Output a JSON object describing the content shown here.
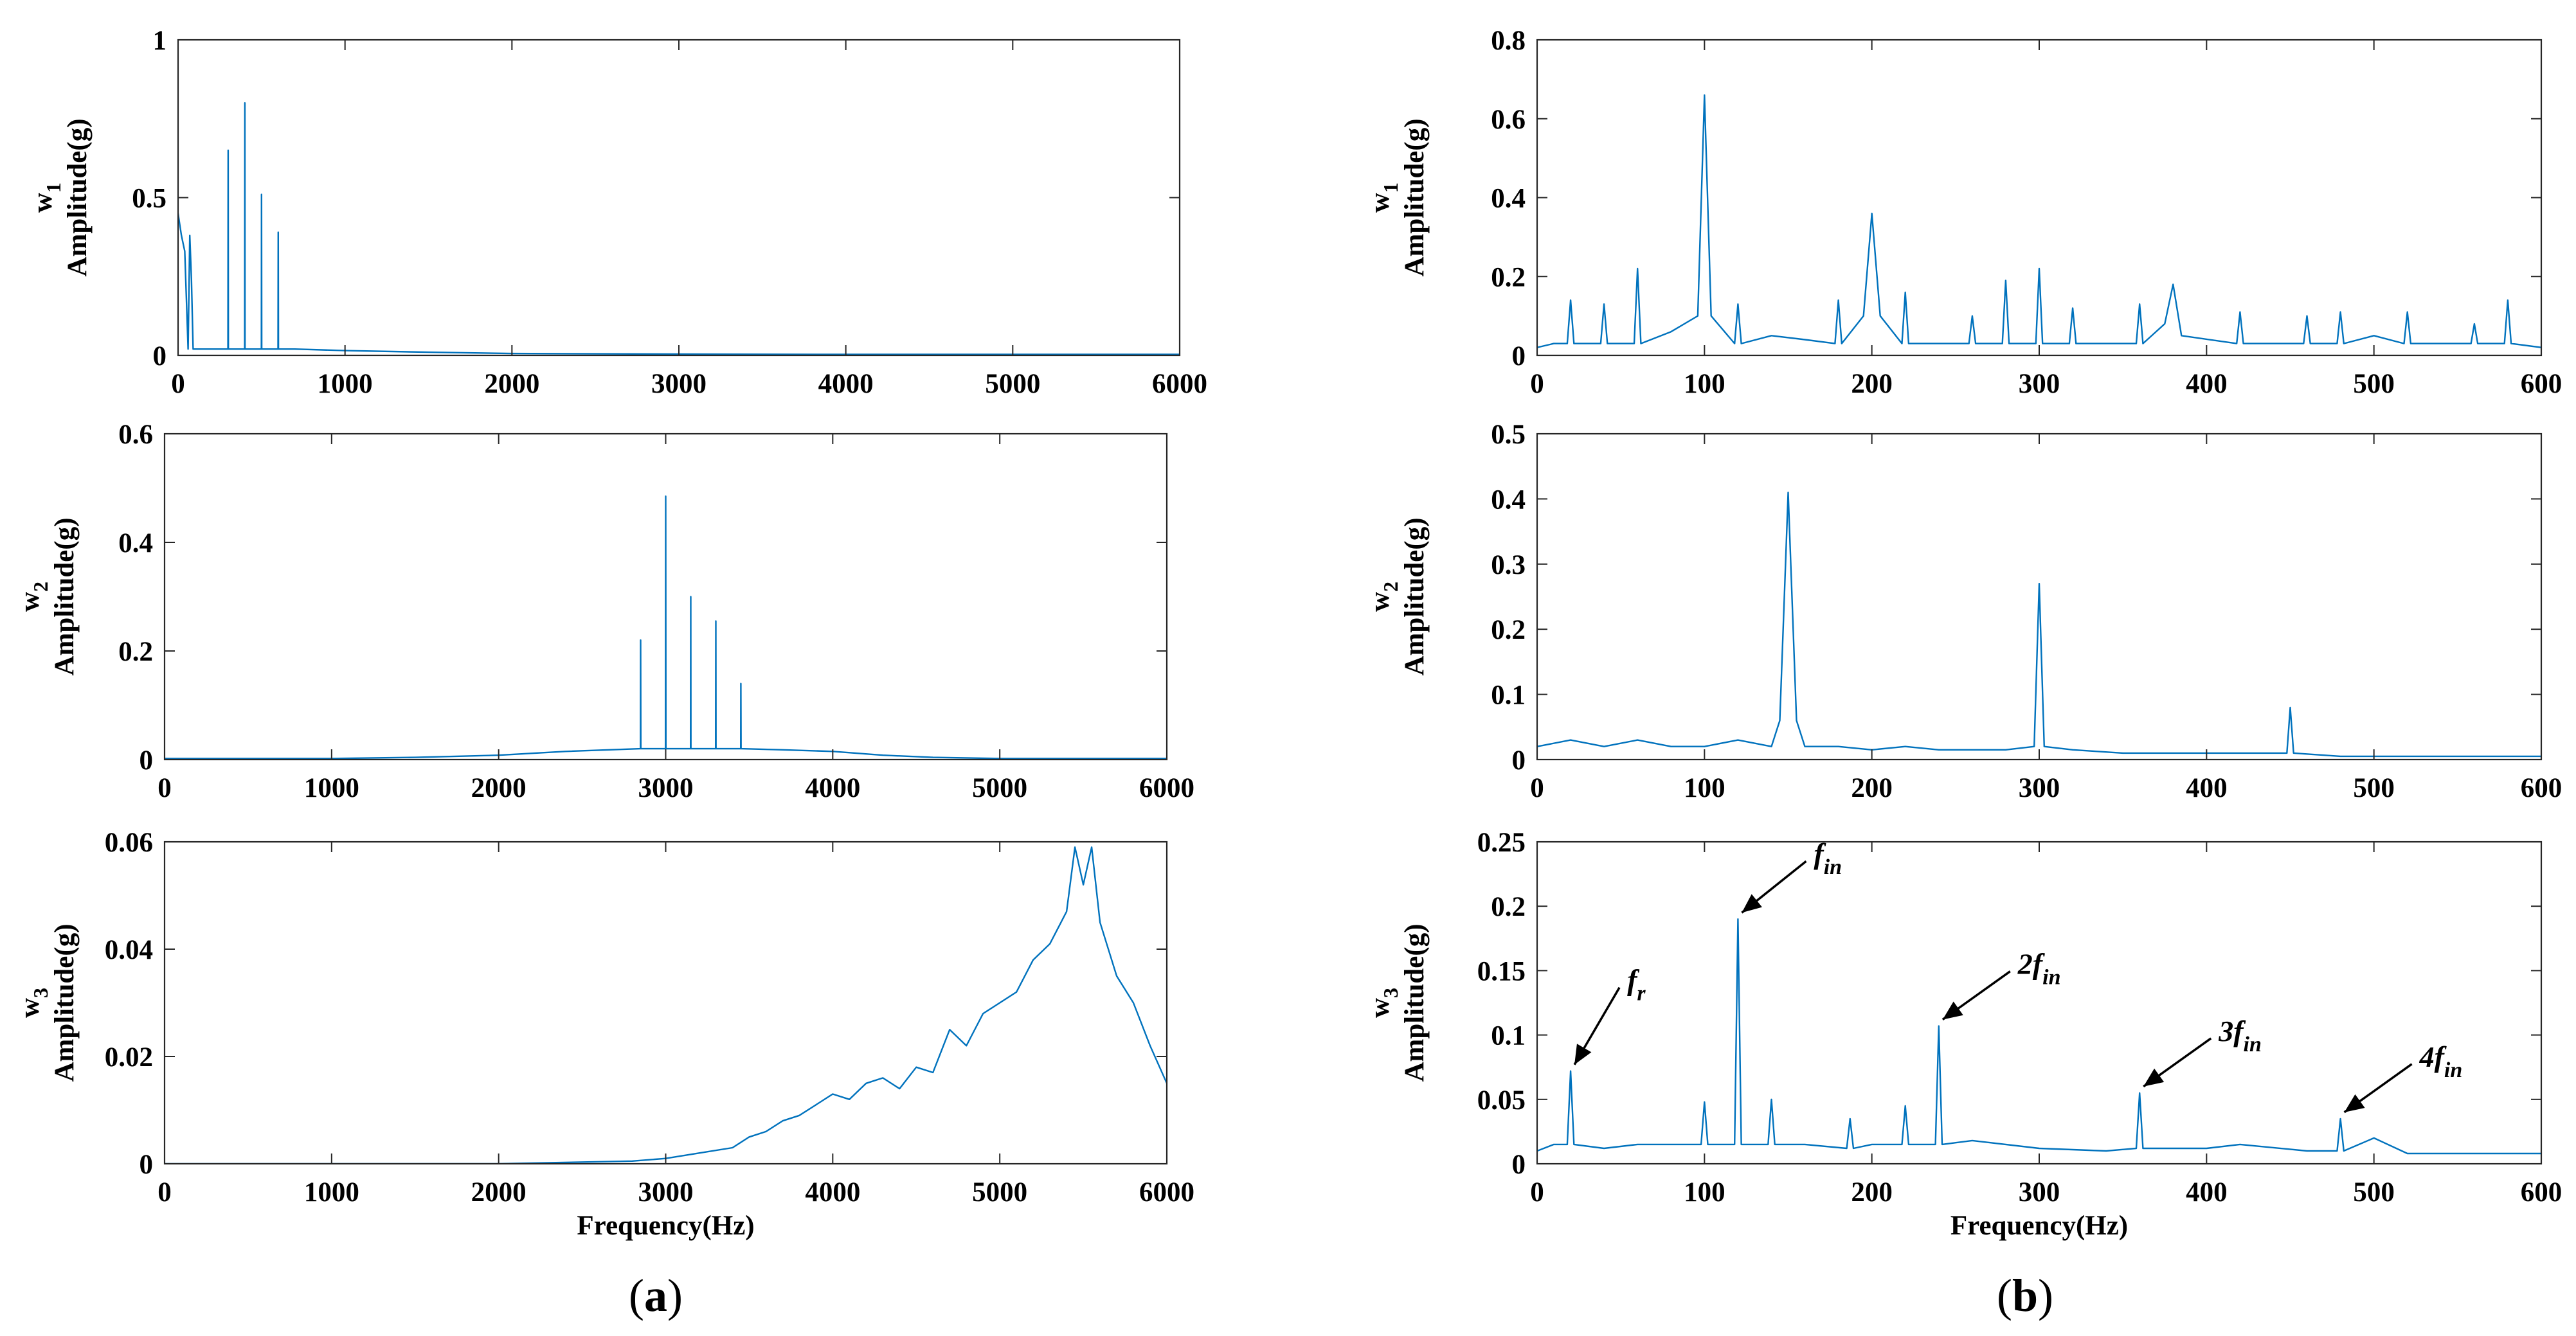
{
  "colors": {
    "series": "#0072BD",
    "axis": "#262626",
    "text": "#000000",
    "background": "#ffffff"
  },
  "captions": {
    "left_prefix": "(",
    "left_letter": "a",
    "left_suffix": ")",
    "right_prefix": "(",
    "right_letter": "b",
    "right_suffix": ")"
  },
  "chart_data": [
    {
      "id": "a1",
      "type": "line",
      "title": "",
      "ylabel_main": "w",
      "ylabel_sub": "1",
      "ylabel_unit": "Amplitude(g)",
      "xlabel": "",
      "xlim": [
        0,
        6000
      ],
      "ylim": [
        0,
        1
      ],
      "xticks": [
        0,
        1000,
        2000,
        3000,
        4000,
        5000,
        6000
      ],
      "yticks": [
        0,
        0.5,
        1
      ],
      "x": [
        0,
        20,
        40,
        60,
        70,
        80,
        90,
        100,
        200,
        299,
        300,
        301,
        399,
        400,
        401,
        499,
        500,
        501,
        599,
        600,
        601,
        700,
        1000,
        1500,
        2000,
        3000,
        4000,
        5000,
        6000
      ],
      "y": [
        0.45,
        0.38,
        0.33,
        0.02,
        0.38,
        0.24,
        0.02,
        0.02,
        0.02,
        0.02,
        0.65,
        0.02,
        0.02,
        0.8,
        0.02,
        0.02,
        0.51,
        0.02,
        0.02,
        0.39,
        0.02,
        0.02,
        0.015,
        0.01,
        0.006,
        0.004,
        0.003,
        0.003,
        0.003
      ],
      "annotations": []
    },
    {
      "id": "a2",
      "type": "line",
      "title": "",
      "ylabel_main": "w",
      "ylabel_sub": "2",
      "ylabel_unit": "Amplitude(g)",
      "xlabel": "",
      "xlim": [
        0,
        6000
      ],
      "ylim": [
        0,
        0.6
      ],
      "xticks": [
        0,
        1000,
        2000,
        3000,
        4000,
        5000,
        6000
      ],
      "yticks": [
        0,
        0.2,
        0.4,
        0.6
      ],
      "x": [
        0,
        1000,
        1500,
        2000,
        2400,
        2849,
        2850,
        2851,
        2999,
        3000,
        3001,
        3149,
        3150,
        3151,
        3299,
        3300,
        3301,
        3449,
        3450,
        3451,
        3700,
        4000,
        4300,
        4600,
        5000,
        6000
      ],
      "y": [
        0.002,
        0.002,
        0.004,
        0.008,
        0.015,
        0.02,
        0.22,
        0.02,
        0.02,
        0.485,
        0.02,
        0.02,
        0.3,
        0.02,
        0.02,
        0.255,
        0.02,
        0.02,
        0.14,
        0.02,
        0.018,
        0.015,
        0.008,
        0.004,
        0.002,
        0.002
      ],
      "annotations": []
    },
    {
      "id": "a3",
      "type": "line",
      "title": "",
      "ylabel_main": "w",
      "ylabel_sub": "3",
      "ylabel_unit": "Amplitude(g)",
      "xlabel": "Frequency(Hz)",
      "xlim": [
        0,
        6000
      ],
      "ylim": [
        0,
        0.06
      ],
      "xticks": [
        0,
        1000,
        2000,
        3000,
        4000,
        5000,
        6000
      ],
      "yticks": [
        0,
        0.02,
        0.04,
        0.06
      ],
      "x": [
        0,
        1000,
        2000,
        2800,
        3000,
        3200,
        3400,
        3500,
        3600,
        3700,
        3800,
        3900,
        4000,
        4100,
        4200,
        4300,
        4400,
        4500,
        4600,
        4700,
        4800,
        4900,
        5000,
        5100,
        5200,
        5300,
        5400,
        5450,
        5500,
        5550,
        5600,
        5700,
        5800,
        5900,
        6000
      ],
      "y": [
        0,
        0,
        0,
        0.0005,
        0.001,
        0.002,
        0.003,
        0.005,
        0.006,
        0.008,
        0.009,
        0.011,
        0.013,
        0.012,
        0.015,
        0.016,
        0.014,
        0.018,
        0.017,
        0.025,
        0.022,
        0.028,
        0.03,
        0.032,
        0.038,
        0.041,
        0.047,
        0.059,
        0.052,
        0.059,
        0.045,
        0.035,
        0.03,
        0.022,
        0.015
      ],
      "annotations": []
    },
    {
      "id": "b1",
      "type": "line",
      "title": "",
      "ylabel_main": "w",
      "ylabel_sub": "1",
      "ylabel_unit": "Amplitude(g)",
      "xlabel": "",
      "xlim": [
        0,
        600
      ],
      "ylim": [
        0,
        0.8
      ],
      "xticks": [
        0,
        100,
        200,
        300,
        400,
        500,
        600
      ],
      "yticks": [
        0,
        0.2,
        0.4,
        0.6,
        0.8
      ],
      "x": [
        0,
        10,
        18,
        20,
        22,
        38,
        40,
        42,
        58,
        60,
        62,
        80,
        96,
        100,
        104,
        118,
        120,
        122,
        140,
        160,
        178,
        180,
        182,
        195,
        200,
        205,
        218,
        220,
        222,
        258,
        260,
        262,
        278,
        280,
        282,
        298,
        300,
        302,
        318,
        320,
        322,
        358,
        360,
        362,
        375,
        380,
        385,
        418,
        420,
        422,
        458,
        460,
        462,
        478,
        480,
        482,
        500,
        518,
        520,
        522,
        558,
        560,
        562,
        578,
        580,
        582,
        600
      ],
      "y": [
        0.02,
        0.03,
        0.03,
        0.14,
        0.03,
        0.03,
        0.13,
        0.03,
        0.03,
        0.22,
        0.03,
        0.06,
        0.1,
        0.66,
        0.1,
        0.03,
        0.13,
        0.03,
        0.05,
        0.04,
        0.03,
        0.14,
        0.03,
        0.1,
        0.36,
        0.1,
        0.03,
        0.16,
        0.03,
        0.03,
        0.1,
        0.03,
        0.03,
        0.19,
        0.03,
        0.03,
        0.22,
        0.03,
        0.03,
        0.12,
        0.03,
        0.03,
        0.13,
        0.03,
        0.08,
        0.18,
        0.05,
        0.03,
        0.11,
        0.03,
        0.03,
        0.1,
        0.03,
        0.03,
        0.11,
        0.03,
        0.05,
        0.03,
        0.11,
        0.03,
        0.03,
        0.08,
        0.03,
        0.03,
        0.14,
        0.03,
        0.02
      ],
      "annotations": []
    },
    {
      "id": "b2",
      "type": "line",
      "title": "",
      "ylabel_main": "w",
      "ylabel_sub": "2",
      "ylabel_unit": "Amplitude(g)",
      "xlabel": "",
      "xlim": [
        0,
        600
      ],
      "ylim": [
        0,
        0.5
      ],
      "xticks": [
        0,
        100,
        200,
        300,
        400,
        500,
        600
      ],
      "yticks": [
        0,
        0.1,
        0.2,
        0.3,
        0.4,
        0.5
      ],
      "x": [
        0,
        20,
        40,
        60,
        80,
        100,
        120,
        140,
        145,
        150,
        155,
        160,
        180,
        200,
        220,
        240,
        260,
        280,
        297,
        300,
        303,
        320,
        350,
        380,
        420,
        448,
        450,
        452,
        480,
        500,
        550,
        600
      ],
      "y": [
        0.02,
        0.03,
        0.02,
        0.03,
        0.02,
        0.02,
        0.03,
        0.02,
        0.06,
        0.41,
        0.06,
        0.02,
        0.02,
        0.015,
        0.02,
        0.015,
        0.015,
        0.015,
        0.02,
        0.27,
        0.02,
        0.015,
        0.01,
        0.01,
        0.01,
        0.01,
        0.08,
        0.01,
        0.005,
        0.005,
        0.005,
        0.005
      ],
      "annotations": []
    },
    {
      "id": "b3",
      "type": "line",
      "title": "",
      "ylabel_main": "w",
      "ylabel_sub": "3",
      "ylabel_unit": "Amplitude(g)",
      "xlabel": "Frequency(Hz)",
      "xlim": [
        0,
        600
      ],
      "ylim": [
        0,
        0.25
      ],
      "xticks": [
        0,
        100,
        200,
        300,
        400,
        500,
        600
      ],
      "yticks": [
        0,
        0.05,
        0.1,
        0.15,
        0.2,
        0.25
      ],
      "x": [
        0,
        10,
        18,
        20,
        22,
        40,
        60,
        80,
        98,
        100,
        102,
        118,
        120,
        122,
        138,
        140,
        142,
        160,
        185,
        187,
        189,
        200,
        218,
        220,
        222,
        238,
        240,
        242,
        260,
        300,
        340,
        358,
        360,
        362,
        400,
        420,
        460,
        478,
        480,
        482,
        500,
        520,
        560,
        600
      ],
      "y": [
        0.01,
        0.015,
        0.015,
        0.072,
        0.015,
        0.012,
        0.015,
        0.015,
        0.015,
        0.048,
        0.015,
        0.015,
        0.19,
        0.015,
        0.015,
        0.05,
        0.015,
        0.015,
        0.012,
        0.035,
        0.012,
        0.015,
        0.015,
        0.045,
        0.015,
        0.015,
        0.107,
        0.015,
        0.018,
        0.012,
        0.01,
        0.012,
        0.055,
        0.012,
        0.012,
        0.015,
        0.01,
        0.01,
        0.035,
        0.01,
        0.02,
        0.008,
        0.008,
        0.008
      ],
      "annotations": [
        {
          "label": "f",
          "sub": "r",
          "x": 20,
          "y": 0.072
        },
        {
          "label": "f",
          "sub": "in",
          "x": 120,
          "y": 0.19
        },
        {
          "label": "2f",
          "sub": "in",
          "x": 240,
          "y": 0.107
        },
        {
          "label": "3f",
          "sub": "in",
          "x": 360,
          "y": 0.055
        },
        {
          "label": "4f",
          "sub": "in",
          "x": 480,
          "y": 0.035
        }
      ]
    }
  ]
}
